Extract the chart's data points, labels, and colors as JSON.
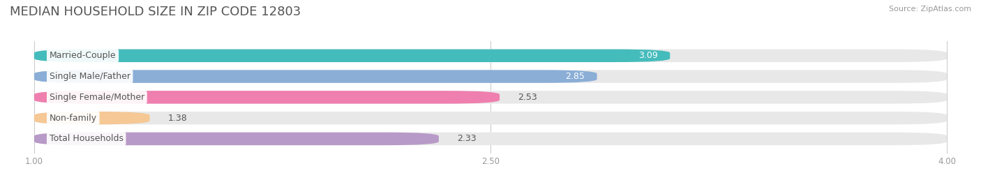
{
  "title": "MEDIAN HOUSEHOLD SIZE IN ZIP CODE 12803",
  "source": "Source: ZipAtlas.com",
  "categories": [
    "Married-Couple",
    "Single Male/Father",
    "Single Female/Mother",
    "Non-family",
    "Total Households"
  ],
  "values": [
    3.09,
    2.85,
    2.53,
    1.38,
    2.33
  ],
  "bar_colors": [
    "#45BCBC",
    "#8AAED6",
    "#EF7FAE",
    "#F5C895",
    "#B89AC8"
  ],
  "bg_bar_color": "#E8E8E8",
  "xlim_min": 1.0,
  "xlim_max": 4.0,
  "xticks": [
    1.0,
    2.5,
    4.0
  ],
  "xtick_labels": [
    "1.00",
    "2.50",
    "4.00"
  ],
  "title_fontsize": 13,
  "label_fontsize": 9,
  "value_fontsize": 9,
  "bar_height": 0.62,
  "background_color": "#FFFFFF",
  "value_inside_colors": [
    "white",
    "white",
    "black",
    "black",
    "black"
  ],
  "value_inside": [
    true,
    true,
    false,
    false,
    false
  ]
}
